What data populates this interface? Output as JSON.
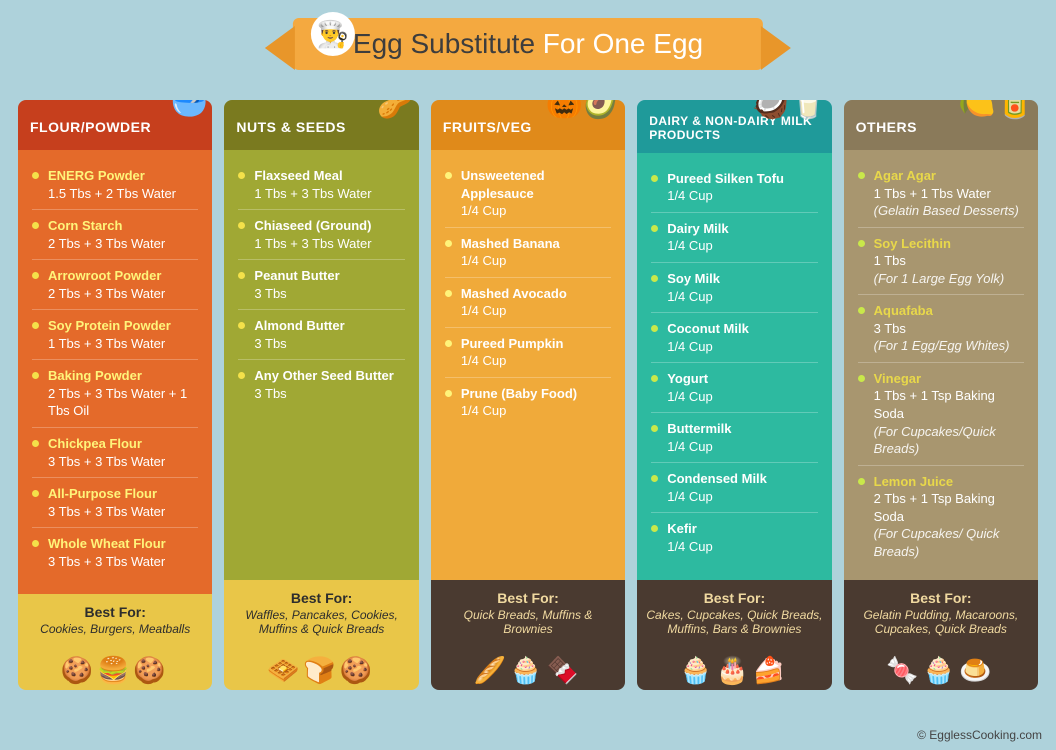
{
  "title": {
    "part1": "Egg Substitute ",
    "part2": "For One Egg"
  },
  "title_colors": {
    "part1": "#3d3d3d",
    "part2": "#ffffff",
    "banner_bg": "#f4a940"
  },
  "page_bg": "#aed2db",
  "credit": "© EgglessCooking.com",
  "chef_icon": "👨‍🍳",
  "best_for_label": "Best For:",
  "columns": [
    {
      "id": "flour",
      "header": "FLOUR/POWDER",
      "icon": "🥣",
      "colors": {
        "header": "#c63f1d",
        "body": "#e46a2a",
        "footer": "#e9c648",
        "bullet": "#f4e14a",
        "name": "#fff47a"
      },
      "items": [
        {
          "name": "ENERG Powder",
          "amount": "1.5 Tbs + 2 Tbs Water"
        },
        {
          "name": "Corn Starch",
          "amount": "2 Tbs + 3 Tbs Water"
        },
        {
          "name": "Arrowroot  Powder",
          "amount": "2 Tbs + 3 Tbs Water"
        },
        {
          "name": "Soy Protein Powder",
          "amount": "1 Tbs + 3 Tbs Water"
        },
        {
          "name": "Baking Powder",
          "amount": "2 Tbs + 3 Tbs Water + 1 Tbs Oil"
        },
        {
          "name": "Chickpea Flour",
          "amount": "3 Tbs + 3 Tbs Water"
        },
        {
          "name": "All-Purpose Flour",
          "amount": "3 Tbs + 3 Tbs Water"
        },
        {
          "name": "Whole Wheat Flour",
          "amount": "3 Tbs + 3 Tbs Water"
        }
      ],
      "best_for": "Cookies, Burgers, Meatballs",
      "foot_icons": "🍪🍔🍪"
    },
    {
      "id": "nuts",
      "header": "NUTS & SEEDS",
      "icon": "🥜",
      "colors": {
        "header": "#7a7a1f",
        "body": "#a0a834",
        "footer": "#e9c648",
        "bullet": "#f4e14a",
        "name": "#ffffff"
      },
      "items": [
        {
          "name": "Flaxseed Meal",
          "amount": "1 Tbs + 3 Tbs Water"
        },
        {
          "name": "Chiaseed (Ground)",
          "amount": "1 Tbs + 3 Tbs Water"
        },
        {
          "name": "Peanut Butter",
          "amount": "3 Tbs"
        },
        {
          "name": "Almond Butter",
          "amount": "3 Tbs"
        },
        {
          "name": "Any Other Seed Butter",
          "amount": "3 Tbs"
        }
      ],
      "best_for": "Waffles, Pancakes, Cookies, Muffins & Quick Breads",
      "foot_icons": "🧇🍞🍪"
    },
    {
      "id": "fruits",
      "header": "FRUITS/VEG",
      "icon": "🎃🥑",
      "colors": {
        "header": "#e08a1a",
        "body": "#f0aa3a",
        "footer": "#4a3a30",
        "bullet": "#fff47a",
        "name": "#ffffff"
      },
      "footer_text_color": "#f0d9a0",
      "items": [
        {
          "name": "Unsweetened Applesauce",
          "amount": "1/4 Cup"
        },
        {
          "name": "Mashed Banana",
          "amount": "1/4 Cup"
        },
        {
          "name": "Mashed Avocado",
          "amount": "1/4 Cup"
        },
        {
          "name": "Pureed Pumpkin",
          "amount": "1/4 Cup"
        },
        {
          "name": "Prune (Baby Food)",
          "amount": "1/4 Cup"
        }
      ],
      "best_for": "Quick Breads, Muffins & Brownies",
      "foot_icons": "🥖🧁🍫"
    },
    {
      "id": "dairy",
      "header": "DAIRY & NON-DAIRY MILK PRODUCTS",
      "header_twoline": true,
      "icon": "🥥🥛",
      "colors": {
        "header": "#1f9a9a",
        "body": "#2dbaa0",
        "footer": "#4a3a30",
        "bullet": "#c9e84a",
        "name": "#ffffff"
      },
      "footer_text_color": "#f0d9a0",
      "items": [
        {
          "name": "Pureed Silken Tofu",
          "amount": "1/4 Cup"
        },
        {
          "name": "Dairy Milk",
          "amount": "1/4 Cup"
        },
        {
          "name": "Soy Milk",
          "amount": "1/4 Cup"
        },
        {
          "name": "Coconut Milk",
          "amount": "1/4 Cup"
        },
        {
          "name": "Yogurt",
          "amount": "1/4 Cup"
        },
        {
          "name": "Buttermilk",
          "amount": "1/4 Cup"
        },
        {
          "name": "Condensed Milk",
          "amount": "1/4 Cup"
        },
        {
          "name": "Kefir",
          "amount": "1/4 Cup"
        }
      ],
      "best_for": "Cakes, Cupcakes, Quick Breads, Muffins, Bars & Brownies",
      "foot_icons": "🧁🎂🍰"
    },
    {
      "id": "others",
      "header": "OTHERS",
      "icon": "🍋🥫",
      "colors": {
        "header": "#8a7a5a",
        "body": "#a8966f",
        "footer": "#4a3a30",
        "bullet": "#c9e84a",
        "name": "#e8d84a"
      },
      "footer_text_color": "#f0d9a0",
      "items": [
        {
          "name": "Agar Agar",
          "amount": "1 Tbs + 1 Tbs Water",
          "note": "(Gelatin Based Desserts)"
        },
        {
          "name": "Soy Lecithin",
          "amount": "1 Tbs",
          "note": "(For 1 Large Egg Yolk)"
        },
        {
          "name": "Aquafaba",
          "amount": "3 Tbs",
          "note": "(For 1 Egg/Egg Whites)"
        },
        {
          "name": "Vinegar",
          "amount": "1 Tbs + 1 Tsp Baking Soda",
          "note": "(For Cupcakes/Quick Breads)"
        },
        {
          "name": "Lemon Juice",
          "amount": "2 Tbs + 1 Tsp Baking Soda",
          "note": "(For Cupcakes/ Quick Breads)"
        }
      ],
      "best_for": "Gelatin Pudding, Macaroons, Cupcakes, Quick Breads",
      "foot_icons": "🍬🧁🍮"
    }
  ]
}
